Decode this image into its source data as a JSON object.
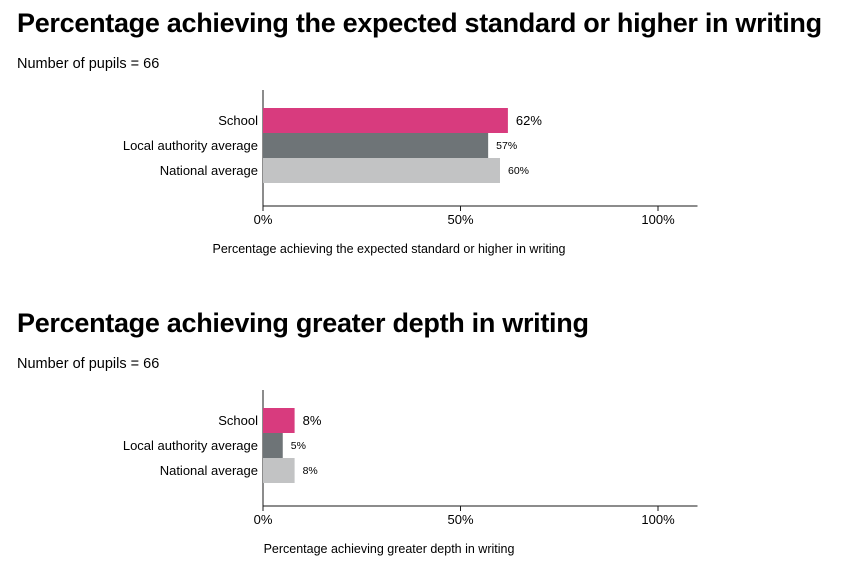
{
  "chart_data": [
    {
      "type": "bar",
      "orientation": "horizontal",
      "title": "Percentage achieving the expected standard or higher in writing",
      "subtitle": "Number of pupils = 66",
      "categories": [
        "School",
        "Local authority average",
        "National average"
      ],
      "values": [
        62,
        57,
        60
      ],
      "value_labels": [
        "62%",
        "57%",
        "60%"
      ],
      "colors": [
        "#d83b7e",
        "#6e7477",
        "#c2c3c4"
      ],
      "xlabel": "Percentage achieving the expected standard or higher in writing",
      "xlim": [
        0,
        110
      ],
      "xticks": [
        0,
        50,
        100
      ],
      "xtick_labels": [
        "0%",
        "50%",
        "100%"
      ],
      "grid": false
    },
    {
      "type": "bar",
      "orientation": "horizontal",
      "title": "Percentage achieving greater depth in writing",
      "subtitle": "Number of pupils = 66",
      "categories": [
        "School",
        "Local authority average",
        "National average"
      ],
      "values": [
        8,
        5,
        8
      ],
      "value_labels": [
        "8%",
        "5%",
        "8%"
      ],
      "colors": [
        "#d83b7e",
        "#6e7477",
        "#c2c3c4"
      ],
      "xlabel": "Percentage achieving greater depth in writing",
      "xlim": [
        0,
        110
      ],
      "xticks": [
        0,
        50,
        100
      ],
      "xtick_labels": [
        "0%",
        "50%",
        "100%"
      ],
      "grid": false
    }
  ]
}
